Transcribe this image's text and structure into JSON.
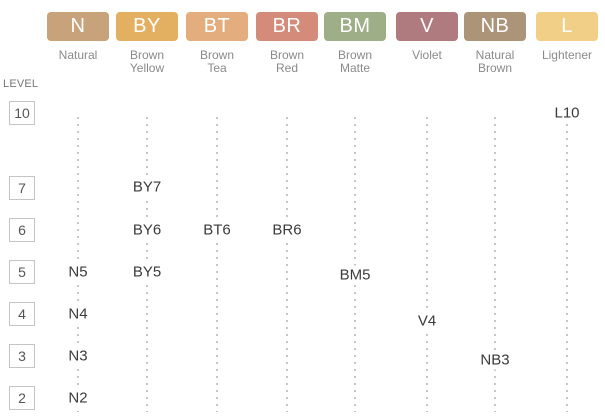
{
  "level_title": "LEVEL",
  "categories": [
    {
      "code": "N",
      "name_lines": [
        "Natural"
      ],
      "color": "#c8a27a"
    },
    {
      "code": "BY",
      "name_lines": [
        "Brown",
        "Yellow"
      ],
      "color": "#e3b062"
    },
    {
      "code": "BT",
      "name_lines": [
        "Brown",
        "Tea"
      ],
      "color": "#e4ad7e"
    },
    {
      "code": "BR",
      "name_lines": [
        "Brown",
        "Red"
      ],
      "color": "#d48b7a"
    },
    {
      "code": "BM",
      "name_lines": [
        "Brown",
        "Matte"
      ],
      "color": "#9eae86"
    },
    {
      "code": "V",
      "name_lines": [
        "Violet"
      ],
      "color": "#b07b7f"
    },
    {
      "code": "NB",
      "name_lines": [
        "Natural",
        "Brown"
      ],
      "color": "#ac9478"
    },
    {
      "code": "L",
      "name_lines": [
        "Lightener"
      ],
      "color": "#f2cf86"
    }
  ],
  "levels": [
    "10",
    "7",
    "6",
    "5",
    "4",
    "3",
    "2"
  ],
  "shades": [
    {
      "label": "N5",
      "category": "N",
      "level": 5
    },
    {
      "label": "N4",
      "category": "N",
      "level": 4
    },
    {
      "label": "N3",
      "category": "N",
      "level": 3
    },
    {
      "label": "N2",
      "category": "N",
      "level": 2
    },
    {
      "label": "BY7",
      "category": "BY",
      "level": 7
    },
    {
      "label": "BY6",
      "category": "BY",
      "level": 6
    },
    {
      "label": "BY5",
      "category": "BY",
      "level": 5
    },
    {
      "label": "BT6",
      "category": "BT",
      "level": 6
    },
    {
      "label": "BR6",
      "category": "BR",
      "level": 6
    },
    {
      "label": "BM5",
      "category": "BM",
      "level": 5
    },
    {
      "label": "V4",
      "category": "V",
      "level": 4
    },
    {
      "label": "NB3",
      "category": "NB",
      "level": 3
    },
    {
      "label": "L10",
      "category": "L",
      "level": 10
    }
  ]
}
